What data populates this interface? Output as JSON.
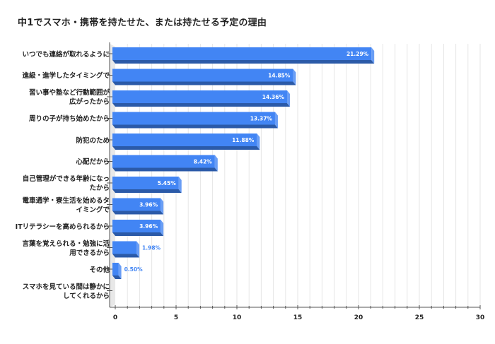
{
  "title": "中1でスマホ・携帯を持たせた、または持たせる予定の理由",
  "colors": {
    "bar_front": "#4285F4",
    "bar_side": "#6a9ef5",
    "bar_bottom": "#2b5aa8",
    "label_inside": "#ffffff",
    "label_outside": "#4285F4",
    "grid": "#e6e6e6",
    "axis": "#555555",
    "wall": "#e8e8e8"
  },
  "chart_data": {
    "type": "bar",
    "orientation": "horizontal",
    "style": "3d",
    "title": "中1でスマホ・携帯を持たせた、または持たせる予定の理由",
    "xlabel": "",
    "ylabel": "",
    "xlim": [
      0,
      30
    ],
    "xticks": [
      0,
      5,
      10,
      15,
      20,
      25,
      30
    ],
    "grid": true,
    "legend": null,
    "categories": [
      [
        "いつでも連絡が取れるように"
      ],
      [
        "進級・進学したタイミングで"
      ],
      [
        "習い事や塾など行動範囲が",
        "広がったから"
      ],
      [
        "周りの子が持ち始めたから"
      ],
      [
        "防犯のため"
      ],
      [
        "心配だから"
      ],
      [
        "自己管理ができる年齢になっ",
        "たから"
      ],
      [
        "電車通学・寮生活を始めるタ",
        "イミングで"
      ],
      [
        "ITリテラシーを高められるから"
      ],
      [
        "言葉を覚えられる・勉強に活",
        "用できるから"
      ],
      [
        "その他"
      ],
      [
        "スマホを見ている間は静かに",
        "してくれるから"
      ]
    ],
    "values": [
      21.29,
      14.85,
      14.36,
      13.37,
      11.88,
      8.42,
      5.45,
      3.96,
      3.96,
      1.98,
      0.5,
      0
    ],
    "value_labels": [
      "21.29%",
      "14.85%",
      "14.36%",
      "13.37%",
      "11.88%",
      "8.42%",
      "5.45%",
      "3.96%",
      "3.96%",
      "1.98%",
      "0.50%",
      ""
    ]
  }
}
